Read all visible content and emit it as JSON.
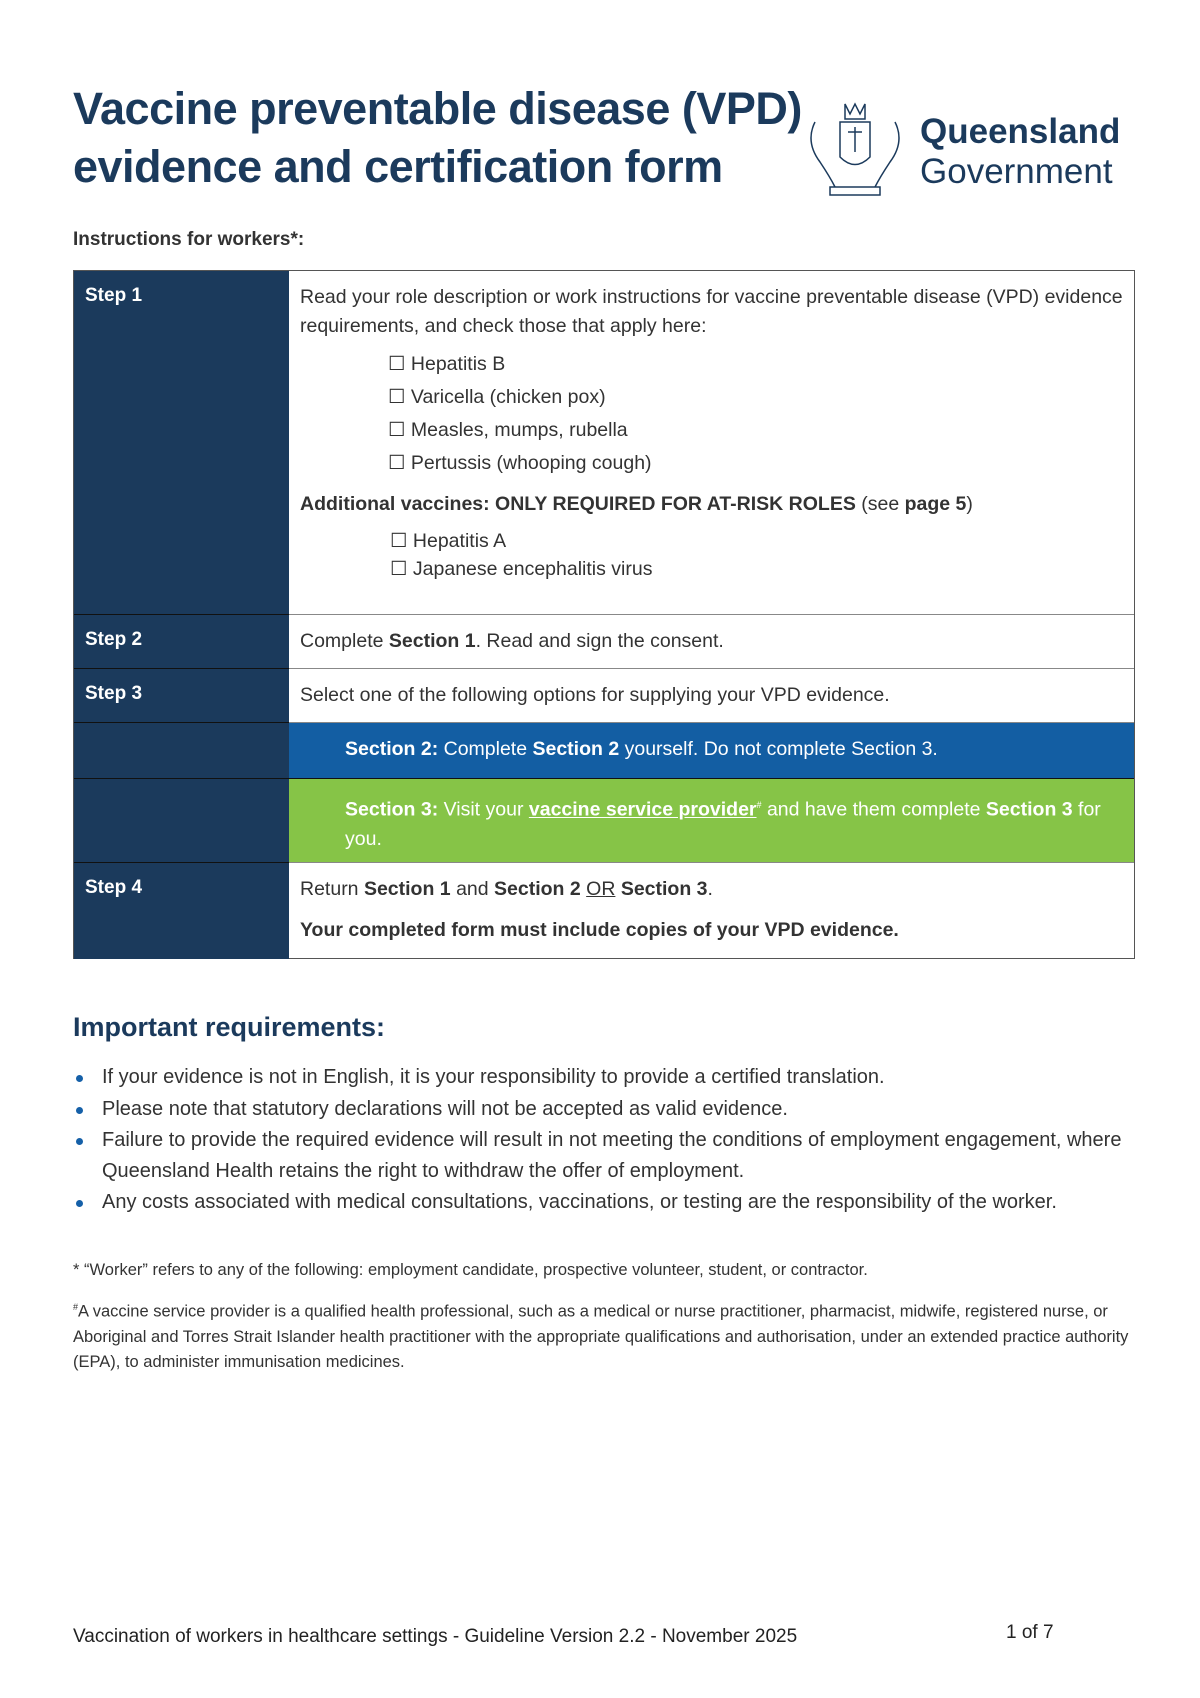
{
  "header": {
    "title_line1": "Vaccine preventable disease (VPD)",
    "title_line2": "evidence and certification form",
    "logo_text1": "Queensland",
    "logo_text2": "Government"
  },
  "instructions_label": "Instructions for workers*:",
  "steps": {
    "step1": {
      "label": "Step 1",
      "text": "Read your role description or work instructions for vaccine preventable disease (VPD) evidence requirements, and check those that apply here:",
      "checkboxes": [
        "Hepatitis B",
        "Varicella (chicken pox)",
        "Measles, mumps, rubella",
        "Pertussis (whooping cough)"
      ],
      "additional_bold": "Additional vaccines: ONLY REQUIRED FOR AT-RISK ROLES",
      "additional_see": " (see ",
      "additional_page": "page 5",
      "additional_close": ")",
      "additional_checkboxes": [
        "Hepatitis A",
        "Japanese encephalitis virus"
      ]
    },
    "step2": {
      "label": "Step 2",
      "t1": "Complete ",
      "b1": "Section 1",
      "t2": ". Read and sign the consent."
    },
    "step3": {
      "label": "Step 3",
      "text": "Select one of the following options for supplying your VPD evidence."
    },
    "section2": {
      "b1": "Section 2:",
      "t1": " Complete ",
      "b2": "Section 2",
      "t2": " yourself. Do not complete Section 3.",
      "color": "#135ea3"
    },
    "section3": {
      "b1": "Section 3:",
      "t1": " Visit your ",
      "link": "vaccine service provider",
      "sup": "#",
      "t2": " and have them complete ",
      "b2": "Section 3",
      "t3": " for you.",
      "color": "#86c447"
    },
    "step4": {
      "label": "Step 4",
      "t1": "Return ",
      "b1": "Section 1",
      "t2": " and ",
      "b2": "Section 2",
      "or": "OR",
      "b3": "Section 3",
      "t3": ".",
      "note": "Your completed form must include copies of your VPD evidence."
    }
  },
  "requirements": {
    "heading": "Important requirements:",
    "items": [
      "If your evidence is not in English, it is your responsibility to provide a certified translation.",
      "Please note that statutory declarations will not be accepted as valid evidence.",
      "Failure to provide the required evidence will result in not meeting the conditions of employment engagement, where Queensland Health retains the right to withdraw the offer of employment.",
      "Any costs associated with medical consultations, vaccinations, or testing are the responsibility of the worker."
    ]
  },
  "footnotes": {
    "worker": "* “Worker” refers to any of the following: employment candidate, prospective volunteer, student, or contractor.",
    "provider_mark": "#",
    "provider": "A vaccine service provider is a qualified health professional, such as a medical or nurse practitioner, pharmacist, midwife, registered nurse, or Aboriginal and Torres Strait Islander health practitioner with the appropriate qualifications and authorisation, under an extended practice authority (EPA), to administer immunisation medicines."
  },
  "footer": {
    "text": "Vaccination of workers in healthcare settings - Guideline Version 2.2 - November 2025",
    "page": "1 of 7"
  },
  "colors": {
    "navy": "#1b3a5c",
    "blue": "#135ea3",
    "green": "#86c447"
  }
}
